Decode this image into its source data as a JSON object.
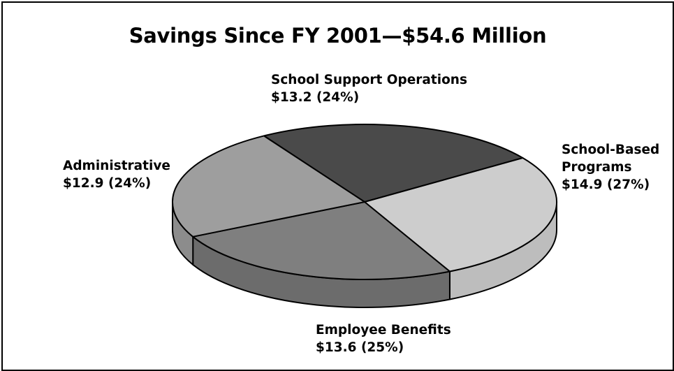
{
  "chart_data": {
    "type": "pie",
    "title": "Savings Since FY 2001—$54.6 Million",
    "slices": [
      {
        "label": "School Support Operations",
        "value": 13.2,
        "percent": 24,
        "value_label": "$13.2 (24%)",
        "color": "#4a4a4a",
        "side_color": "#3a3a3a"
      },
      {
        "label": "School-Based Programs",
        "value": 14.9,
        "percent": 27,
        "value_label": "$14.9 (27%)",
        "color": "#cdcdcd",
        "side_color": "#bdbdbd"
      },
      {
        "label": "Employee Benefits",
        "value": 13.6,
        "percent": 25,
        "value_label": "$13.6 (25%)",
        "color": "#7f7f7f",
        "side_color": "#6c6c6c"
      },
      {
        "label": "Administrative",
        "value": 12.9,
        "percent": 24,
        "value_label": "$12.9 (24%)",
        "color": "#9e9e9e",
        "side_color": "#8c8c8c"
      }
    ]
  }
}
